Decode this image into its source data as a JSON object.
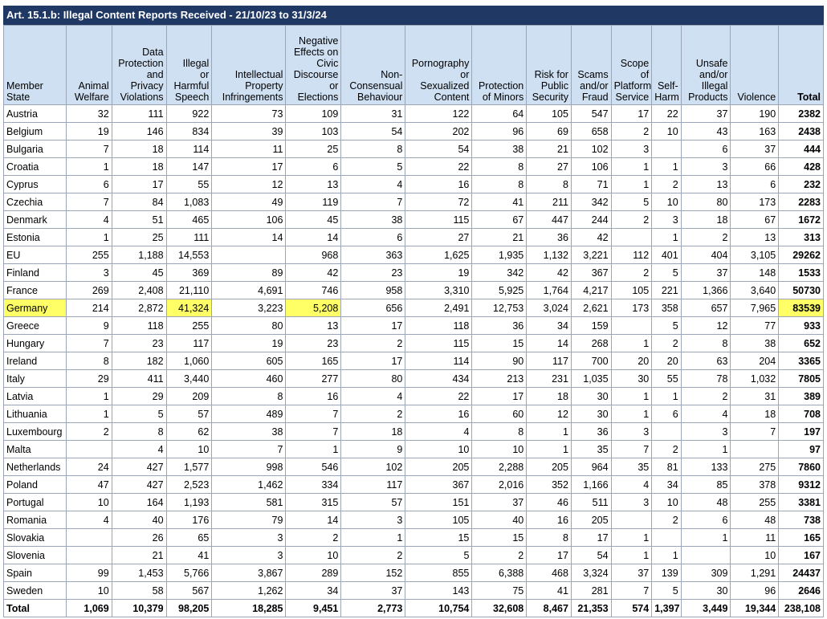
{
  "title": "Art. 15.1.b: Illegal Content Reports Received - 21/10/23 to 31/3/24",
  "highlight_color": "#ffff66",
  "header_color": "#1f3864",
  "columns": [
    "Member\nState",
    "Animal\nWelfare",
    "Data\nProtection\nand\nPrivacy\nViolations",
    "Illegal\nor\nHarmful\nSpeech",
    "Intellectual\nProperty\nInfringements",
    "Negative\nEffects on\nCivic\nDiscourse\nor\nElections",
    "Non-\nConsensual\nBehaviour",
    "Pornography\nor\nSexualized\nContent",
    "Protection\nof Minors",
    "Risk for\nPublic\nSecurity",
    "Scams\nand/or\nFraud",
    "Scope\nof\nPlatform\nService",
    "Self-\nHarm",
    "Unsafe\nand/or\nIllegal\nProducts",
    "Violence",
    "Total"
  ],
  "rows": [
    [
      "Austria",
      "32",
      "111",
      "922",
      "73",
      "109",
      "31",
      "122",
      "64",
      "105",
      "547",
      "17",
      "22",
      "37",
      "190",
      "2382"
    ],
    [
      "Belgium",
      "19",
      "146",
      "834",
      "39",
      "103",
      "54",
      "202",
      "96",
      "69",
      "658",
      "2",
      "10",
      "43",
      "163",
      "2438"
    ],
    [
      "Bulgaria",
      "7",
      "18",
      "114",
      "11",
      "25",
      "8",
      "54",
      "38",
      "21",
      "102",
      "3",
      "",
      "6",
      "37",
      "444"
    ],
    [
      "Croatia",
      "1",
      "18",
      "147",
      "17",
      "6",
      "5",
      "22",
      "8",
      "27",
      "106",
      "1",
      "1",
      "3",
      "66",
      "428"
    ],
    [
      "Cyprus",
      "6",
      "17",
      "55",
      "12",
      "13",
      "4",
      "16",
      "8",
      "8",
      "71",
      "1",
      "2",
      "13",
      "6",
      "232"
    ],
    [
      "Czechia",
      "7",
      "84",
      "1,083",
      "49",
      "119",
      "7",
      "72",
      "41",
      "211",
      "342",
      "5",
      "10",
      "80",
      "173",
      "2283"
    ],
    [
      "Denmark",
      "4",
      "51",
      "465",
      "106",
      "45",
      "38",
      "115",
      "67",
      "447",
      "244",
      "2",
      "3",
      "18",
      "67",
      "1672"
    ],
    [
      "Estonia",
      "1",
      "25",
      "111",
      "14",
      "14",
      "6",
      "27",
      "21",
      "36",
      "42",
      "",
      "1",
      "2",
      "13",
      "313"
    ],
    [
      "EU",
      "255",
      "1,188",
      "14,553",
      "",
      "968",
      "363",
      "1,625",
      "1,935",
      "1,132",
      "3,221",
      "112",
      "401",
      "404",
      "3,105",
      "29262"
    ],
    [
      "Finland",
      "3",
      "45",
      "369",
      "89",
      "42",
      "23",
      "19",
      "342",
      "42",
      "367",
      "2",
      "5",
      "37",
      "148",
      "1533"
    ],
    [
      "France",
      "269",
      "2,408",
      "21,110",
      "4,691",
      "746",
      "958",
      "3,310",
      "5,925",
      "1,764",
      "4,217",
      "105",
      "221",
      "1,366",
      "3,640",
      "50730"
    ],
    [
      "Germany",
      "214",
      "2,872",
      "41,324",
      "3,223",
      "5,208",
      "656",
      "2,491",
      "12,753",
      "3,024",
      "2,621",
      "173",
      "358",
      "657",
      "7,965",
      "83539"
    ],
    [
      "Greece",
      "9",
      "118",
      "255",
      "80",
      "13",
      "17",
      "118",
      "36",
      "34",
      "159",
      "",
      "5",
      "12",
      "77",
      "933"
    ],
    [
      "Hungary",
      "7",
      "23",
      "117",
      "19",
      "23",
      "2",
      "115",
      "15",
      "14",
      "268",
      "1",
      "2",
      "8",
      "38",
      "652"
    ],
    [
      "Ireland",
      "8",
      "182",
      "1,060",
      "605",
      "165",
      "17",
      "114",
      "90",
      "117",
      "700",
      "20",
      "20",
      "63",
      "204",
      "3365"
    ],
    [
      "Italy",
      "29",
      "411",
      "3,440",
      "460",
      "277",
      "80",
      "434",
      "213",
      "231",
      "1,035",
      "30",
      "55",
      "78",
      "1,032",
      "7805"
    ],
    [
      "Latvia",
      "1",
      "29",
      "209",
      "8",
      "16",
      "4",
      "22",
      "17",
      "18",
      "30",
      "1",
      "1",
      "2",
      "31",
      "389"
    ],
    [
      "Lithuania",
      "1",
      "5",
      "57",
      "489",
      "7",
      "2",
      "16",
      "60",
      "12",
      "30",
      "1",
      "6",
      "4",
      "18",
      "708"
    ],
    [
      "Luxembourg",
      "2",
      "8",
      "62",
      "38",
      "7",
      "18",
      "4",
      "8",
      "1",
      "36",
      "3",
      "",
      "3",
      "7",
      "197"
    ],
    [
      "Malta",
      "",
      "4",
      "10",
      "7",
      "1",
      "9",
      "10",
      "10",
      "1",
      "35",
      "7",
      "2",
      "1",
      "",
      "97"
    ],
    [
      "Netherlands",
      "24",
      "427",
      "1,577",
      "998",
      "546",
      "102",
      "205",
      "2,288",
      "205",
      "964",
      "35",
      "81",
      "133",
      "275",
      "7860"
    ],
    [
      "Poland",
      "47",
      "427",
      "2,523",
      "1,462",
      "334",
      "117",
      "367",
      "2,016",
      "352",
      "1,166",
      "4",
      "34",
      "85",
      "378",
      "9312"
    ],
    [
      "Portugal",
      "10",
      "164",
      "1,193",
      "581",
      "315",
      "57",
      "151",
      "37",
      "46",
      "511",
      "3",
      "10",
      "48",
      "255",
      "3381"
    ],
    [
      "Romania",
      "4",
      "40",
      "176",
      "79",
      "14",
      "3",
      "105",
      "40",
      "16",
      "205",
      "",
      "2",
      "6",
      "48",
      "738"
    ],
    [
      "Slovakia",
      "",
      "26",
      "65",
      "3",
      "2",
      "1",
      "15",
      "15",
      "8",
      "17",
      "1",
      "",
      "1",
      "11",
      "165"
    ],
    [
      "Slovenia",
      "",
      "21",
      "41",
      "3",
      "10",
      "2",
      "5",
      "2",
      "17",
      "54",
      "1",
      "1",
      "",
      "10",
      "167"
    ],
    [
      "Spain",
      "99",
      "1,453",
      "5,766",
      "3,867",
      "289",
      "152",
      "855",
      "6,388",
      "468",
      "3,324",
      "37",
      "139",
      "309",
      "1,291",
      "24437"
    ],
    [
      "Sweden",
      "10",
      "58",
      "567",
      "1,262",
      "34",
      "37",
      "143",
      "75",
      "41",
      "281",
      "7",
      "5",
      "30",
      "96",
      "2646"
    ]
  ],
  "totals": [
    "Total",
    "1,069",
    "10,379",
    "98,205",
    "18,285",
    "9,451",
    "2,773",
    "10,754",
    "32,608",
    "8,467",
    "21,353",
    "574",
    "1,397",
    "3,449",
    "19,344",
    "238,108"
  ],
  "highlighted_cells": [
    [
      11,
      0
    ],
    [
      11,
      3
    ],
    [
      11,
      5
    ],
    [
      11,
      15
    ]
  ]
}
